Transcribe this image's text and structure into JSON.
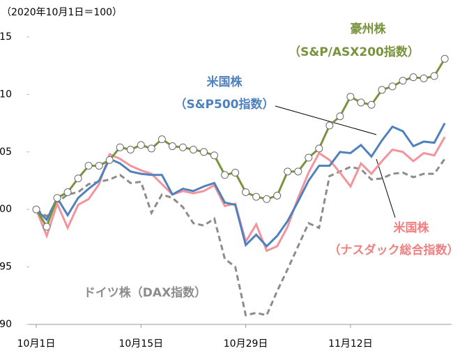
{
  "chart_data": {
    "type": "line",
    "subtitle": "（2020年10月1日＝100）",
    "categories": [
      "10月1日",
      null,
      null,
      null,
      null,
      null,
      null,
      null,
      null,
      null,
      "10月15日",
      null,
      null,
      null,
      null,
      null,
      null,
      null,
      null,
      null,
      "10月29日",
      null,
      null,
      null,
      null,
      null,
      null,
      null,
      null,
      null,
      "11月12日",
      null,
      null,
      null,
      null,
      null,
      null,
      null,
      null,
      null
    ],
    "ylim": [
      90,
      115
    ],
    "yticks": [
      90,
      95,
      100,
      105,
      110,
      115
    ],
    "series": [
      {
        "name": "豪州株",
        "color": "#77933c",
        "marker": "circle",
        "dash": false,
        "values": [
          100,
          98.5,
          101.0,
          101.5,
          102.7,
          103.8,
          103.8,
          104.3,
          105.4,
          105.2,
          105.6,
          105.3,
          106.1,
          105.5,
          105.4,
          105.2,
          105.0,
          104.7,
          103.0,
          103.2,
          101.5,
          101.1,
          100.9,
          101.2,
          103.3,
          103.3,
          104.5,
          105.3,
          107.3,
          108.1,
          109.8,
          109.3,
          109.1,
          110.4,
          110.7,
          111.2,
          111.5,
          111.4,
          111.6,
          113.1
        ]
      },
      {
        "name": "米国株（S&P500）",
        "color": "#4f81bd",
        "marker": "none",
        "dash": false,
        "values": [
          100,
          99.1,
          101.0,
          99.5,
          101.0,
          101.8,
          102.5,
          104.4,
          104.0,
          103.3,
          103.1,
          103.0,
          103.0,
          101.3,
          101.8,
          101.6,
          102.0,
          102.3,
          100.6,
          100.4,
          96.9,
          97.8,
          96.8,
          97.7,
          99.0,
          100.7,
          102.5,
          103.8,
          103.8,
          105.0,
          104.9,
          105.6,
          104.6,
          106.0,
          107.2,
          106.8,
          105.5,
          105.9,
          105.8,
          107.5
        ]
      },
      {
        "name": "米国株（ナスダック）",
        "color": "#f4939b",
        "marker": "none",
        "dash": false,
        "values": [
          100,
          97.7,
          100.5,
          98.4,
          100.4,
          100.9,
          102.2,
          104.8,
          104.4,
          103.8,
          103.4,
          103.1,
          102.2,
          101.3,
          101.6,
          101.4,
          101.6,
          102.1,
          100.3,
          100.5,
          97.2,
          98.7,
          96.4,
          96.8,
          98.5,
          101.0,
          103.2,
          104.9,
          104.3,
          103.2,
          102.0,
          104.0,
          103.1,
          104.2,
          105.2,
          105.0,
          104.2,
          104.9,
          104.7,
          106.3
        ]
      },
      {
        "name": "ドイツ株",
        "color": "#8c8c8c",
        "marker": "none",
        "dash": true,
        "values": [
          100,
          99.4,
          100.6,
          101.3,
          101.5,
          102.2,
          102.4,
          102.6,
          103.0,
          102.3,
          102.4,
          99.7,
          101.3,
          101.0,
          100.2,
          98.8,
          98.6,
          99.2,
          95.7,
          95.0,
          90.8,
          91.0,
          90.8,
          92.9,
          94.8,
          96.8,
          98.8,
          98.4,
          102.9,
          103.3,
          103.7,
          103.5,
          102.6,
          102.7,
          103.1,
          103.2,
          102.8,
          103.1,
          103.1,
          104.4
        ]
      }
    ],
    "annotations": [
      {
        "text": "豪州株",
        "color": "#77933c"
      },
      {
        "text": "（S&P/ASX200指数）",
        "color": "#77933c"
      },
      {
        "text": "米国株",
        "color": "#4f81bd"
      },
      {
        "text": "（S&P500指数）",
        "color": "#4f81bd"
      },
      {
        "text": "米国株",
        "color": "#f08080"
      },
      {
        "text": "（ナスダック総合指数）",
        "color": "#f08080"
      },
      {
        "text": "ドイツ株（DAX指数）",
        "color": "#8c8c8c"
      }
    ]
  }
}
